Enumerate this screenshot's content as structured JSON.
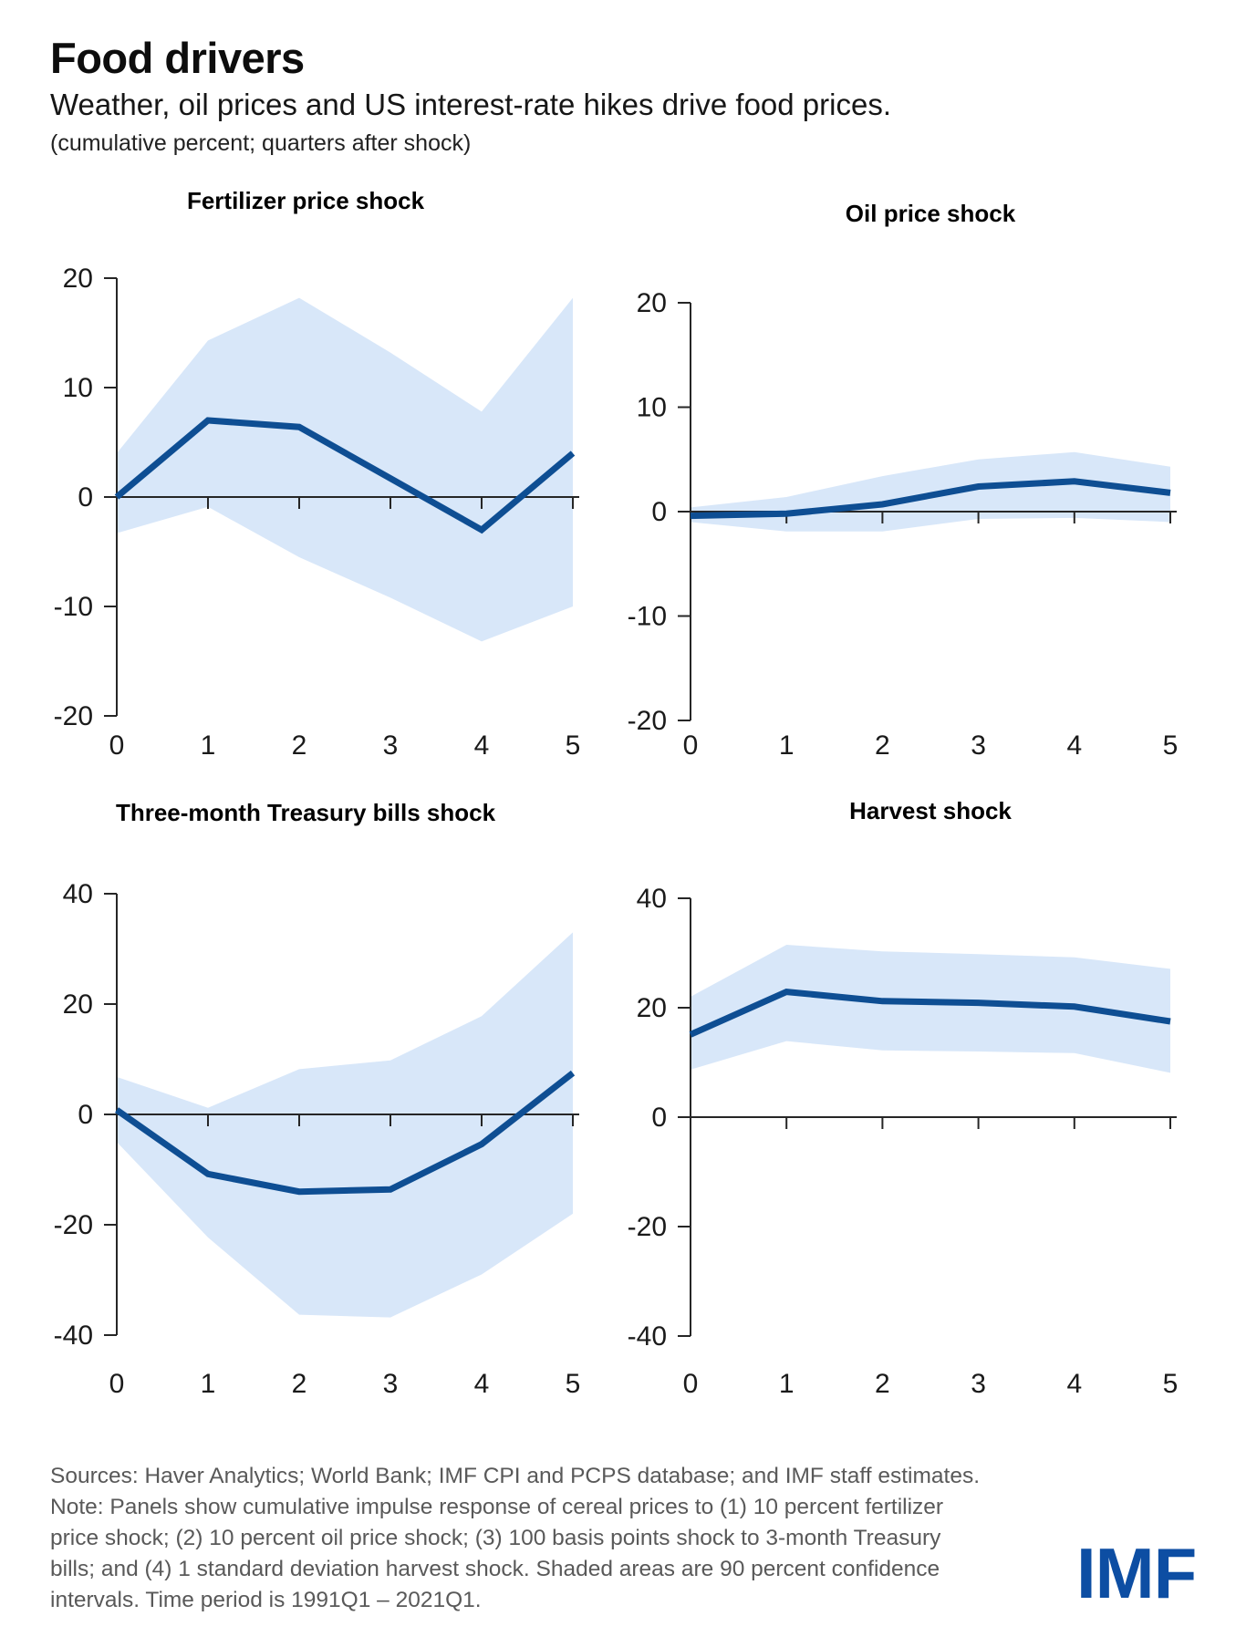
{
  "header": {
    "title": "Food drivers",
    "subtitle": "Weather, oil prices and US interest-rate hikes drive food prices.",
    "units_note": "(cumulative percent; quarters after shock)"
  },
  "chart_data": [
    {
      "type": "line",
      "title": "Fertilizer price shock",
      "x": [
        0,
        1,
        2,
        3,
        4,
        5
      ],
      "series": [
        {
          "name": "response",
          "values": [
            0,
            7,
            6.4,
            1.7,
            -3,
            4
          ]
        },
        {
          "name": "ci_upper",
          "values": [
            4,
            14.3,
            18.2,
            13.2,
            7.8,
            18.2
          ]
        },
        {
          "name": "ci_lower",
          "values": [
            -3.3,
            -0.9,
            -5.5,
            -9.2,
            -13.2,
            -10
          ]
        }
      ],
      "ylim": [
        -20,
        20
      ],
      "yticks": [
        20,
        10,
        0,
        -10,
        -20
      ],
      "xticks": [
        0,
        1,
        2,
        3,
        4,
        5
      ],
      "band": "90 percent confidence interval",
      "grid": false
    },
    {
      "type": "line",
      "title": "Oil price shock",
      "x": [
        0,
        1,
        2,
        3,
        4,
        5
      ],
      "series": [
        {
          "name": "response",
          "values": [
            -0.4,
            -0.2,
            0.7,
            2.4,
            2.9,
            1.8
          ]
        },
        {
          "name": "ci_upper",
          "values": [
            0.4,
            1.4,
            3.4,
            5,
            5.7,
            4.3
          ]
        },
        {
          "name": "ci_lower",
          "values": [
            -1,
            -1.9,
            -1.9,
            -0.7,
            -0.6,
            -1
          ]
        }
      ],
      "ylim": [
        -20,
        20
      ],
      "yticks": [
        20,
        10,
        0,
        -10,
        -20
      ],
      "xticks": [
        0,
        1,
        2,
        3,
        4,
        5
      ],
      "band": "90 percent confidence interval",
      "grid": false
    },
    {
      "type": "line",
      "title": "Three-month Treasury bills shock",
      "x": [
        0,
        1,
        2,
        3,
        4,
        5
      ],
      "series": [
        {
          "name": "response",
          "values": [
            0.8,
            -10.8,
            -14,
            -13.6,
            -5.4,
            7.5
          ]
        },
        {
          "name": "ci_upper",
          "values": [
            6.8,
            1.2,
            8.2,
            9.8,
            17.8,
            33
          ]
        },
        {
          "name": "ci_lower",
          "values": [
            -5,
            -22.3,
            -36.3,
            -36.8,
            -29,
            -18
          ]
        }
      ],
      "ylim": [
        -40,
        40
      ],
      "yticks": [
        40,
        20,
        0,
        -20,
        -40
      ],
      "xticks": [
        0,
        1,
        2,
        3,
        4,
        5
      ],
      "band": "90 percent confidence interval",
      "grid": false
    },
    {
      "type": "line",
      "title": "Harvest shock",
      "x": [
        0,
        1,
        2,
        3,
        4,
        5
      ],
      "series": [
        {
          "name": "response",
          "values": [
            15.1,
            22.9,
            21.2,
            20.9,
            20.2,
            17.5
          ]
        },
        {
          "name": "ci_upper",
          "values": [
            22,
            31.5,
            30.3,
            29.8,
            29.2,
            27.1
          ]
        },
        {
          "name": "ci_lower",
          "values": [
            8.7,
            13.9,
            12.2,
            12,
            11.7,
            8.1
          ]
        }
      ],
      "ylim": [
        -40,
        40
      ],
      "yticks": [
        40,
        20,
        0,
        -20,
        -40
      ],
      "xticks": [
        0,
        1,
        2,
        3,
        4,
        5
      ],
      "band": "90 percent confidence interval",
      "grid": false
    }
  ],
  "footer": {
    "sources": "Sources: Haver Analytics; World Bank; IMF CPI and PCPS database; and IMF staff estimates.",
    "note_lines": [
      "Note: Panels show cumulative impulse response of cereal prices to (1) 10 percent fertilizer",
      "price shock; (2) 10 percent oil price shock; (3) 100 basis points shock to 3-month Treasury",
      "bills; and (4) 1 standard deviation harvest shock. Shaded areas are 90 percent confidence",
      "intervals. Time period is 1991Q1 – 2021Q1."
    ],
    "logo": "IMF"
  },
  "colors": {
    "line": "#0e4e93",
    "band": "#d8e7f9",
    "axis": "#262626",
    "tick_text": "#1a1a1a",
    "footer_text": "#595959",
    "imf_blue": "#0d4ea3"
  }
}
